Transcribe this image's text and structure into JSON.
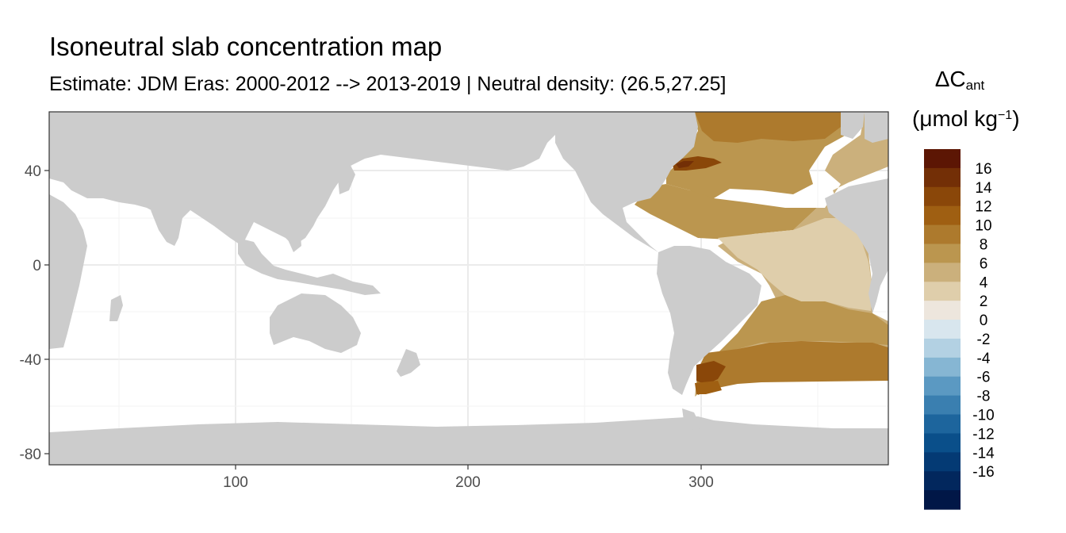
{
  "title": "Isoneutral slab concentration map",
  "subtitle": "Estimate: JDM Eras: 2000-2012 --> 2013-2019 | Neutral density: (26.5,27.25]",
  "legend": {
    "symbol": "ΔC",
    "symbol_sub": "ant",
    "unit_main": "(μmol kg",
    "unit_sup": "−1",
    "unit_close": ")",
    "ticks": [
      "16",
      "14",
      "12",
      "10",
      "8",
      "6",
      "4",
      "2",
      "0",
      "-2",
      "-4",
      "-6",
      "-8",
      "-10",
      "-12",
      "-14",
      "-16"
    ],
    "colors": [
      "#5c1604",
      "#732f06",
      "#8a4709",
      "#9f5f12",
      "#ad7a2d",
      "#bb964f",
      "#cbb07c",
      "#dfceab",
      "#ede6dd",
      "#d8e6ee",
      "#b3d1e3",
      "#86b6d3",
      "#5b99c2",
      "#3a7fb0",
      "#1d659d",
      "#0a4f8a",
      "#043a74",
      "#02275d",
      "#011747"
    ]
  },
  "x_axis": {
    "ticks": [
      "100",
      "200",
      "300"
    ],
    "values": [
      100,
      200,
      300
    ],
    "range": [
      20,
      380
    ]
  },
  "y_axis": {
    "ticks": [
      "40",
      "0",
      "-40",
      "-80"
    ],
    "values": [
      40,
      0,
      -40,
      -80
    ],
    "range": [
      -85,
      65
    ]
  },
  "colors": {
    "land": "#cccccc",
    "ocean": "#ffffff",
    "grid": "#ebebeb"
  }
}
